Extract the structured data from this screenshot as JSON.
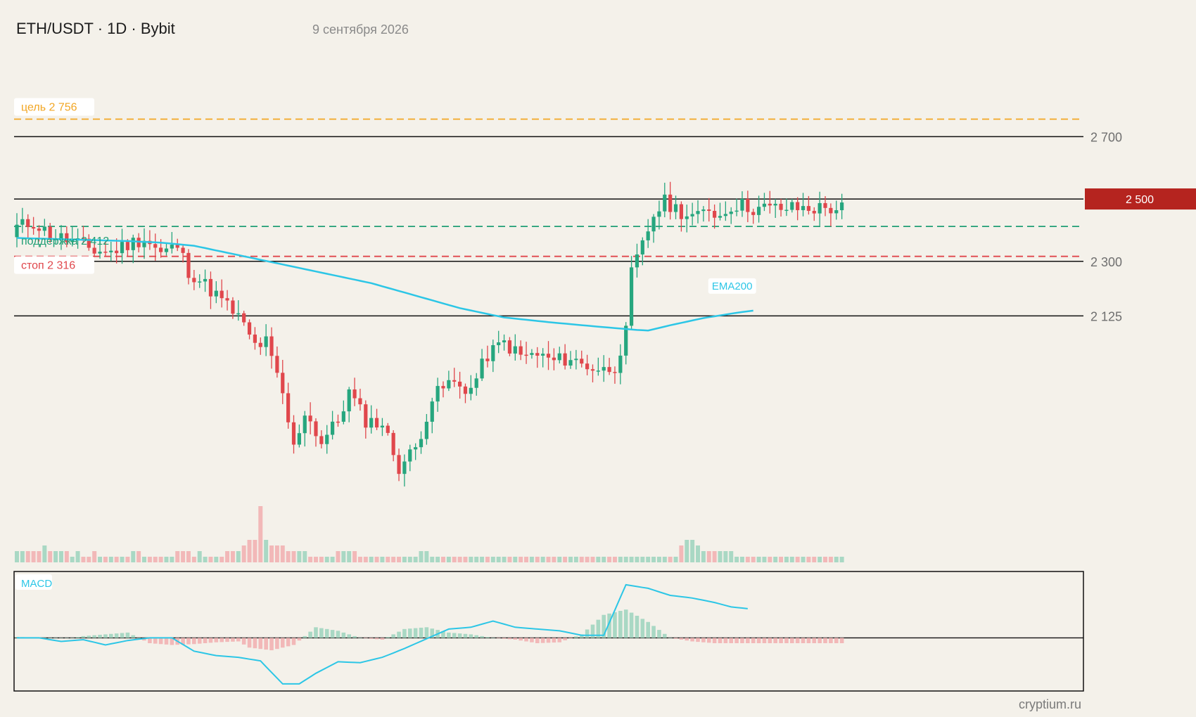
{
  "header": {
    "title": "ETH/USDT · 1D · Bybit",
    "date": "9 сентября 2026"
  },
  "footer": {
    "source": "cryptium.ru"
  },
  "colors": {
    "up": "#26a67e",
    "down": "#e0474c",
    "ema": "#2cc6e6",
    "target": "#f2a623",
    "support": "#1f9e74",
    "stop": "#e0474c",
    "price_badge": "#b5241f",
    "level": "#111111",
    "volume_up": "#a9d8c4",
    "volume_down": "#f2b8b8",
    "macd_line": "#2cc6e6"
  },
  "chart_data": {
    "type": "candlestick",
    "timeframe": "1D",
    "candle_count": 150,
    "ylim": [
      1560,
      2800
    ],
    "y_ticks": [
      {
        "value": 2700,
        "label": "2 700"
      },
      {
        "value": 2300,
        "label": "2 300"
      },
      {
        "value": 2125,
        "label": "2 125"
      }
    ],
    "current_price": {
      "value": 2500,
      "label": "2 500"
    },
    "horizontal_levels": [
      {
        "name": "target",
        "value": 2756,
        "label": "цель 2 756",
        "style": "dashed"
      },
      {
        "name": "resistance",
        "value": 2700,
        "style": "solid"
      },
      {
        "name": "current",
        "value": 2500,
        "style": "solid"
      },
      {
        "name": "support",
        "value": 2412,
        "label": "поддержка 2 412",
        "style": "dashed"
      },
      {
        "name": "stop",
        "value": 2316,
        "label": "стоп 2 316",
        "style": "dashed"
      },
      {
        "name": "level-2300",
        "value": 2300,
        "style": "solid"
      },
      {
        "name": "level-2125",
        "value": 2125,
        "style": "solid"
      }
    ],
    "close_anchors": [
      [
        0,
        2410
      ],
      [
        3,
        2425
      ],
      [
        6,
        2385
      ],
      [
        9,
        2370
      ],
      [
        12,
        2350
      ],
      [
        14,
        2335
      ],
      [
        17,
        2330
      ],
      [
        20,
        2355
      ],
      [
        23,
        2375
      ],
      [
        26,
        2325
      ],
      [
        29,
        2350
      ],
      [
        31,
        2270
      ],
      [
        34,
        2225
      ],
      [
        37,
        2175
      ],
      [
        40,
        2120
      ],
      [
        43,
        2030
      ],
      [
        45,
        2040
      ],
      [
        48,
        1870
      ],
      [
        50,
        1700
      ],
      [
        52,
        1820
      ],
      [
        55,
        1720
      ],
      [
        58,
        1790
      ],
      [
        60,
        1880
      ],
      [
        63,
        1790
      ],
      [
        66,
        1780
      ],
      [
        69,
        1640
      ],
      [
        72,
        1700
      ],
      [
        75,
        1860
      ],
      [
        78,
        1910
      ],
      [
        82,
        1890
      ],
      [
        85,
        2000
      ],
      [
        88,
        2040
      ],
      [
        91,
        1995
      ],
      [
        94,
        2000
      ],
      [
        97,
        1980
      ],
      [
        100,
        1990
      ],
      [
        102,
        1970
      ],
      [
        104,
        1960
      ],
      [
        106,
        1950
      ],
      [
        108,
        1965
      ],
      [
        110,
        2070
      ],
      [
        111,
        2260
      ],
      [
        113,
        2350
      ],
      [
        115,
        2450
      ],
      [
        117,
        2490
      ],
      [
        119,
        2470
      ],
      [
        121,
        2450
      ],
      [
        123,
        2440
      ],
      [
        125,
        2470
      ],
      [
        127,
        2445
      ],
      [
        129,
        2480
      ],
      [
        131,
        2480
      ],
      [
        133,
        2470
      ]
    ],
    "ema200": [
      [
        0,
        2375
      ],
      [
        10,
        2370
      ],
      [
        20,
        2365
      ],
      [
        26,
        2360
      ],
      [
        32,
        2350
      ],
      [
        40,
        2320
      ],
      [
        48,
        2290
      ],
      [
        56,
        2260
      ],
      [
        64,
        2230
      ],
      [
        72,
        2190
      ],
      [
        80,
        2150
      ],
      [
        88,
        2120
      ],
      [
        96,
        2105
      ],
      [
        104,
        2092
      ],
      [
        112,
        2080
      ],
      [
        114,
        2078
      ],
      [
        118,
        2095
      ],
      [
        124,
        2118
      ],
      [
        130,
        2135
      ],
      [
        133,
        2142
      ]
    ],
    "ema_label": "EMA200",
    "volume": {
      "values": [
        2,
        2,
        2,
        2,
        2,
        3,
        2,
        2,
        2,
        2,
        1,
        2,
        1,
        1,
        2,
        1,
        1,
        1,
        1,
        1,
        1,
        2,
        2,
        1,
        1,
        1,
        1,
        1,
        1,
        2,
        2,
        2,
        1,
        2,
        1,
        1,
        1,
        1,
        2,
        2,
        2,
        3,
        4,
        4,
        10,
        4,
        3,
        3,
        3,
        2,
        2,
        2,
        2,
        1,
        1,
        1,
        1,
        1,
        2,
        2,
        2,
        2,
        1,
        1,
        1,
        1,
        1,
        1,
        1,
        1,
        1,
        1,
        1,
        2,
        2,
        1,
        1,
        1,
        1,
        1,
        1,
        1,
        1,
        1,
        1,
        1,
        1,
        1,
        1,
        1,
        1,
        1,
        1,
        1,
        1,
        1,
        1,
        1,
        1,
        1,
        1,
        1,
        1,
        1,
        1,
        1,
        1,
        1,
        1,
        1,
        1,
        1,
        1,
        1,
        1,
        1,
        1,
        1,
        1,
        1,
        3,
        4,
        4,
        3,
        2,
        2,
        2,
        2,
        2,
        2,
        1,
        1,
        1,
        1,
        1,
        1,
        1,
        1,
        1,
        1,
        1,
        1,
        1,
        1,
        1,
        1,
        1,
        1,
        1,
        1
      ]
    },
    "macd": {
      "label": "MACD",
      "ylim": [
        -60,
        75
      ],
      "line": [
        [
          0,
          0
        ],
        [
          4,
          0
        ],
        [
          8,
          -4
        ],
        [
          12,
          -2
        ],
        [
          16,
          -8
        ],
        [
          20,
          -3
        ],
        [
          24,
          0
        ],
        [
          28,
          0
        ],
        [
          32,
          -15
        ],
        [
          36,
          -20
        ],
        [
          40,
          -22
        ],
        [
          44,
          -26
        ],
        [
          48,
          -52
        ],
        [
          51,
          -52
        ],
        [
          54,
          -40
        ],
        [
          58,
          -27
        ],
        [
          62,
          -28
        ],
        [
          66,
          -22
        ],
        [
          70,
          -12
        ],
        [
          74,
          -1
        ],
        [
          78,
          10
        ],
        [
          82,
          12
        ],
        [
          86,
          19
        ],
        [
          90,
          12
        ],
        [
          94,
          10
        ],
        [
          98,
          8
        ],
        [
          102,
          3
        ],
        [
          106,
          3
        ],
        [
          110,
          60
        ],
        [
          114,
          56
        ],
        [
          118,
          48
        ],
        [
          122,
          45
        ],
        [
          126,
          40
        ],
        [
          129,
          35
        ],
        [
          132,
          33
        ]
      ],
      "hist": [
        [
          0,
          1
        ],
        [
          6,
          0
        ],
        [
          10,
          0
        ],
        [
          12,
          2
        ],
        [
          16,
          4
        ],
        [
          20,
          6
        ],
        [
          24,
          -6
        ],
        [
          28,
          -8
        ],
        [
          32,
          -7
        ],
        [
          36,
          -5
        ],
        [
          40,
          -4
        ],
        [
          42,
          -11
        ],
        [
          46,
          -14
        ],
        [
          50,
          -8
        ],
        [
          54,
          12
        ],
        [
          58,
          8
        ],
        [
          62,
          0
        ],
        [
          66,
          -2
        ],
        [
          70,
          10
        ],
        [
          74,
          12
        ],
        [
          78,
          6
        ],
        [
          82,
          4
        ],
        [
          86,
          0
        ],
        [
          90,
          -2
        ],
        [
          94,
          -6
        ],
        [
          98,
          -5
        ],
        [
          102,
          4
        ],
        [
          106,
          26
        ],
        [
          110,
          32
        ],
        [
          114,
          18
        ],
        [
          118,
          0
        ],
        [
          122,
          -4
        ],
        [
          126,
          -6
        ],
        [
          133,
          -6
        ]
      ]
    }
  }
}
